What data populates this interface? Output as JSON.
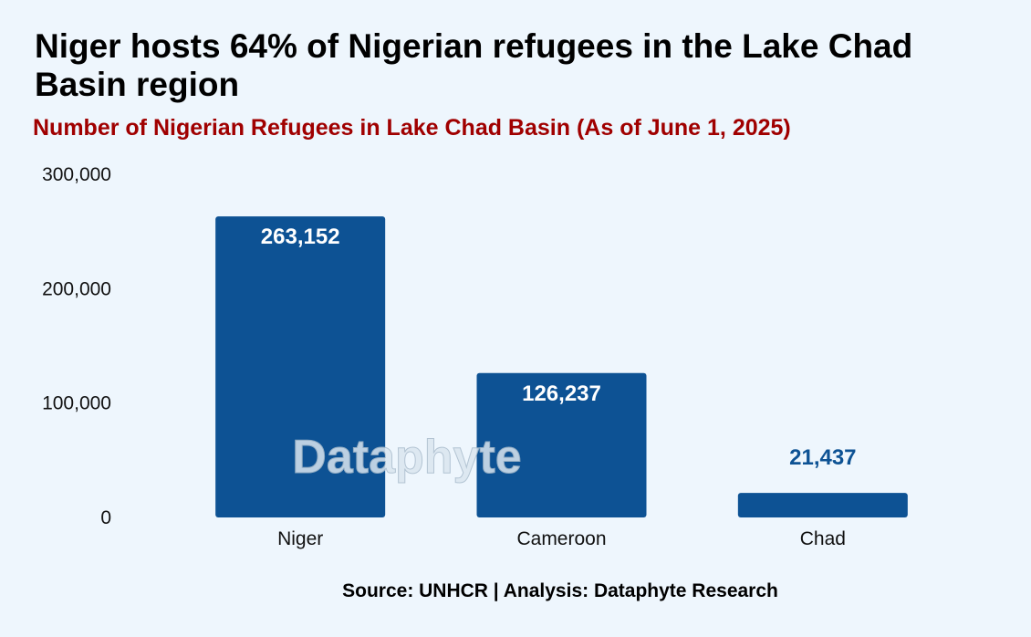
{
  "header": {
    "title": "Niger hosts 64% of Nigerian refugees in the Lake Chad Basin region",
    "subtitle": "Number of Nigerian Refugees in Lake Chad Basin (As of June 1, 2025)"
  },
  "footer": {
    "source": "Source: UNHCR | Analysis: Dataphyte Research"
  },
  "watermark": "Dataphyte",
  "colors": {
    "bar": "#0d5294",
    "inside_label": "#ffffff",
    "outside_label": "#0d5294",
    "background": "#eef6fd",
    "subtitle": "#a00000"
  },
  "chart_data": {
    "type": "bar",
    "categories": [
      "Niger",
      "Cameroon",
      "Chad"
    ],
    "values": [
      263152,
      126237,
      21437
    ],
    "value_labels": [
      "263,152",
      "126,237",
      "21,437"
    ],
    "title": "Niger hosts 64% of Nigerian refugees in the Lake Chad Basin region",
    "subtitle": "Number of Nigerian Refugees in Lake Chad Basin (As of June 1, 2025)",
    "xlabel": "",
    "ylabel": "",
    "ylim": [
      0,
      300000
    ],
    "yticks": [
      0,
      100000,
      200000,
      300000
    ],
    "ytick_labels": [
      "0",
      "100,000",
      "200,000",
      "300,000"
    ],
    "grid": false,
    "legend": "none"
  }
}
